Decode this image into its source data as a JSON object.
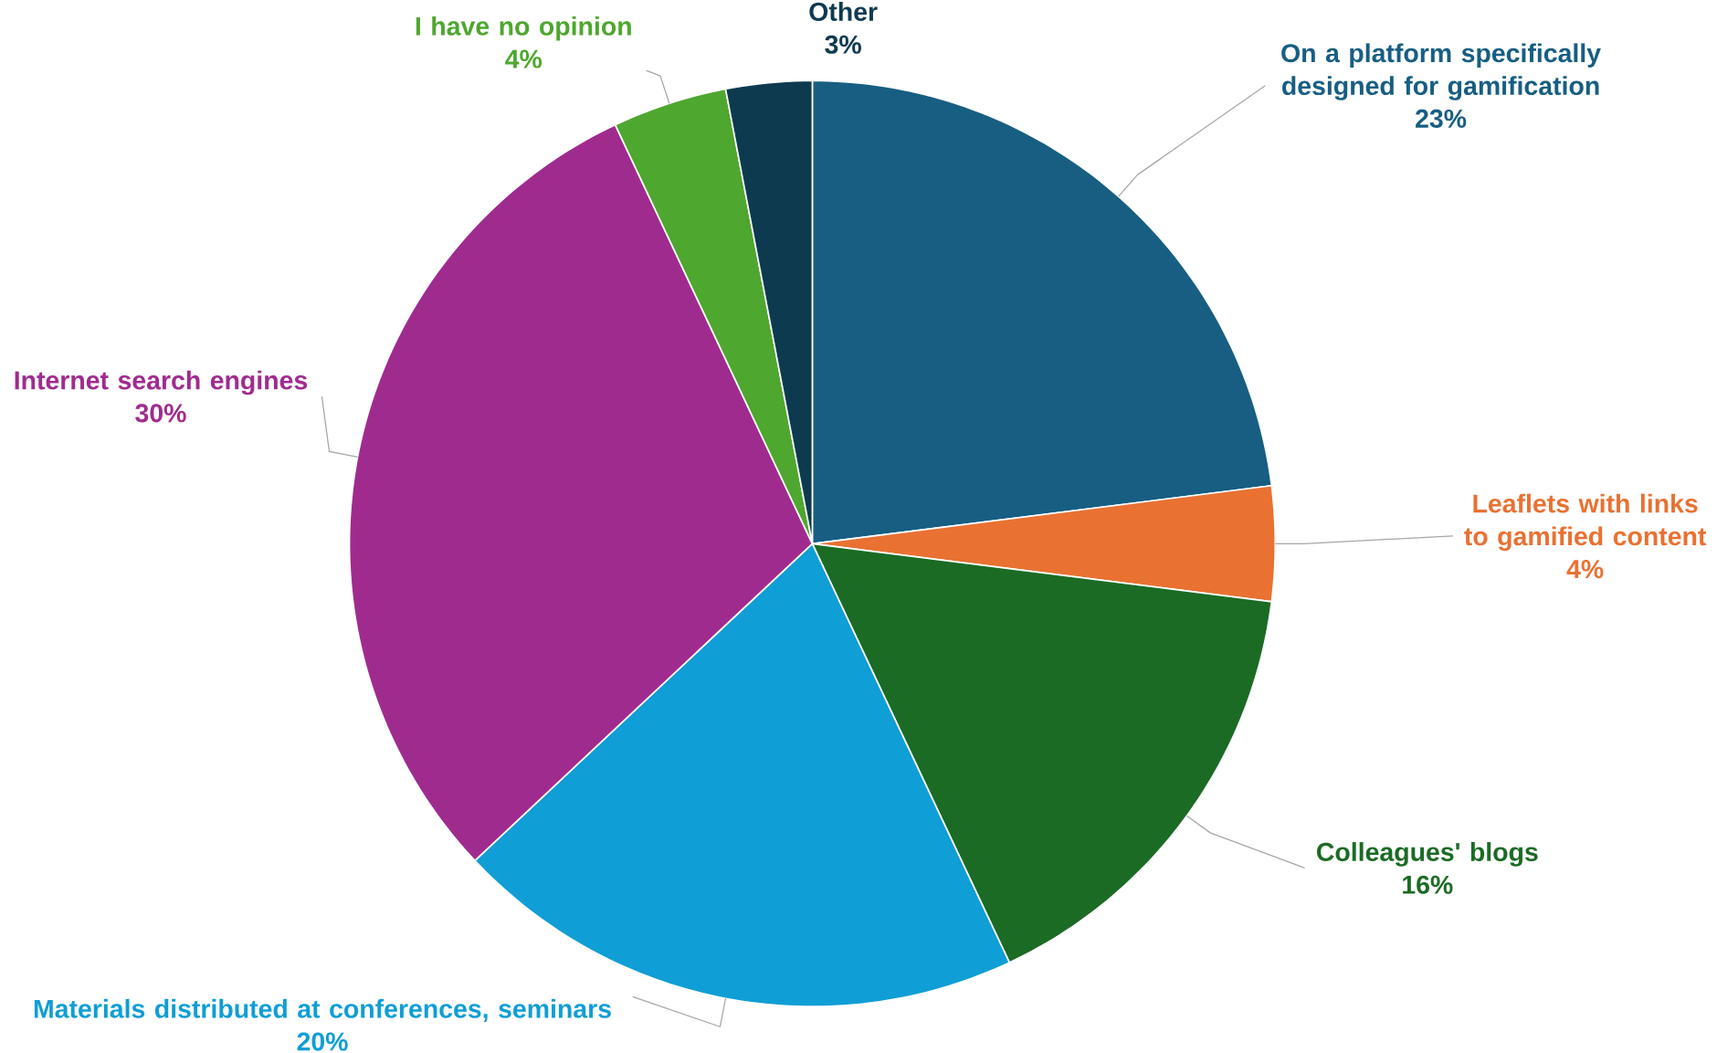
{
  "chart_data": {
    "type": "pie",
    "categories": [
      "On a platform specifically designed for gamification",
      "Leaflets with links to gamified content",
      "Colleagues' blogs",
      "Materials distributed at conferences, seminars",
      "Internet search engines",
      "I have no opinion",
      "Other"
    ],
    "values": [
      23,
      4,
      16,
      20,
      30,
      4,
      3
    ],
    "value_labels": [
      "23%",
      "4%",
      "16%",
      "20%",
      "30%",
      "4%",
      "3%"
    ],
    "colors": [
      "#175e82",
      "#e97132",
      "#1b6b24",
      "#0f9ed5",
      "#a02b8f",
      "#4ea72e",
      "#0e3a50"
    ]
  }
}
